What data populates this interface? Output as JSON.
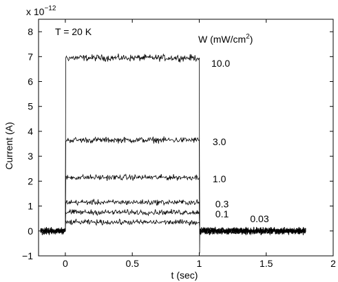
{
  "chart_data": {
    "type": "line",
    "title": "",
    "xlabel": "t (sec)",
    "ylabel": "Current (A)",
    "y_exponent_label": "x 10",
    "y_exponent_power": "−12",
    "xlim": [
      -0.2,
      2
    ],
    "ylim": [
      -1,
      8.5
    ],
    "xticks": [
      "0",
      "0.5",
      "1",
      "1.5",
      "2"
    ],
    "xtick_values": [
      0,
      0.5,
      1,
      1.5,
      2
    ],
    "yticks": [
      "−1",
      "0",
      "1",
      "2",
      "3",
      "4",
      "5",
      "6",
      "7",
      "8"
    ],
    "ytick_values": [
      -1,
      0,
      1,
      2,
      3,
      4,
      5,
      6,
      7,
      8
    ],
    "grid": false,
    "pulse_on_sec": 0.0,
    "pulse_off_sec": 1.0,
    "series": [
      {
        "label": "10.0",
        "level": 6.95
      },
      {
        "label": "3.0",
        "level": 3.65
      },
      {
        "label": "1.0",
        "level": 2.15
      },
      {
        "label": "0.3",
        "level": 1.15
      },
      {
        "label": "0.1",
        "level": 0.75
      },
      {
        "label": "0.03",
        "level": 0.35
      }
    ],
    "noise_amplitude": 0.1,
    "annotations": {
      "temperature": "T = 20 K",
      "legend_header": "W  (mW/cm",
      "legend_header_sup": "2",
      "legend_header_end": ")"
    }
  }
}
